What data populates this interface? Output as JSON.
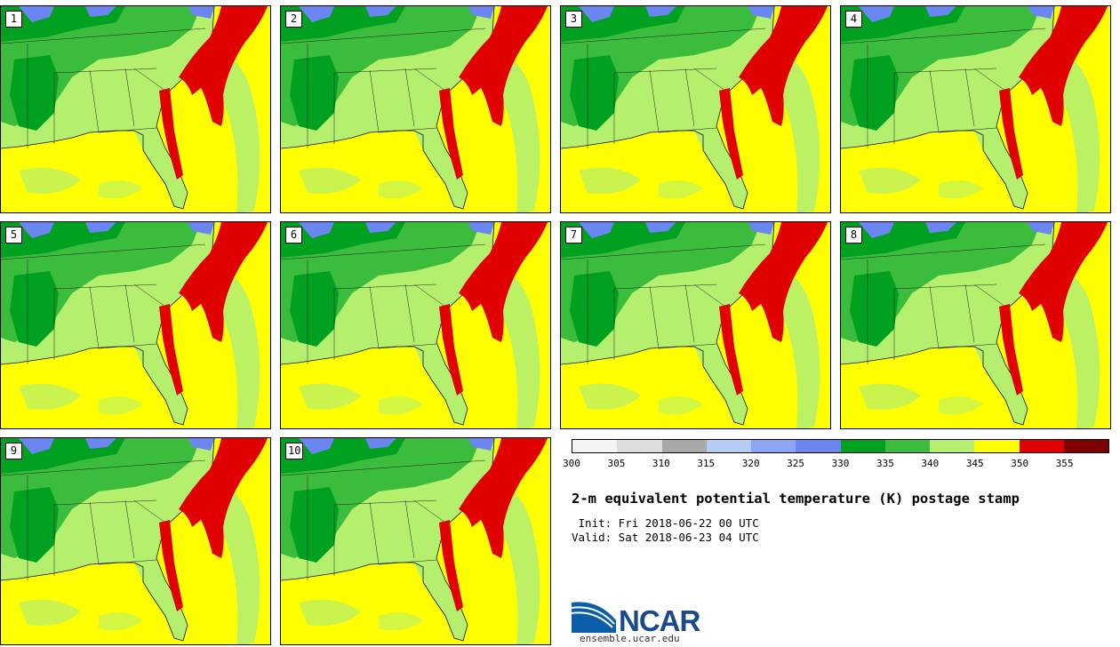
{
  "title": "2-m equivalent potential temperature (K) postage stamp",
  "init": " Init: Fri 2018-06-22 00 UTC",
  "valid": "Valid: Sat 2018-06-23 04 UTC",
  "org": "NCAR",
  "url": "ensemble.ucar.edu",
  "members": [
    "1",
    "2",
    "3",
    "4",
    "5",
    "6",
    "7",
    "8",
    "9",
    "10"
  ],
  "colorbar": {
    "ticks": [
      "300",
      "305",
      "310",
      "315",
      "320",
      "325",
      "330",
      "335",
      "340",
      "345",
      "350",
      "355"
    ],
    "colors": [
      "#f4f4f4",
      "#dcdcdc",
      "#a8a8a8",
      "#b4cdf5",
      "#8aa6f5",
      "#6b86f0",
      "#00a020",
      "#3cbc3c",
      "#b4f06e",
      "#ffff00",
      "#e00000",
      "#800000"
    ]
  },
  "legend_colors": {
    "ocean": "#ffff00",
    "land": "#b4f06e",
    "north": "#3cbc3c",
    "dark": "#00a020",
    "cool": "#6b86f0",
    "gulf_stream": "#e00000"
  }
}
